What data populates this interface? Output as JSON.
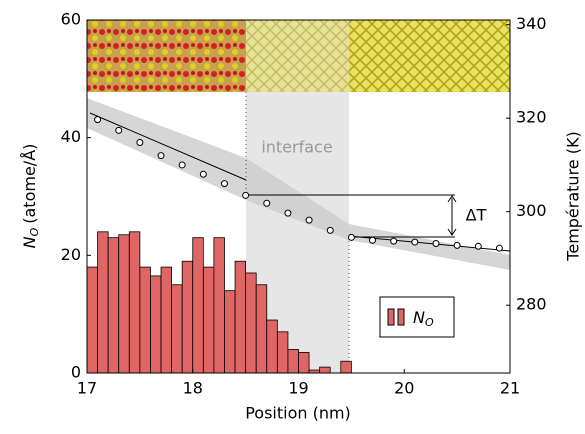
{
  "chart_data": {
    "type": "bar",
    "ylabel": {
      "symbol": "N",
      "subscript": "O",
      "unit": "(atome/Å)"
    },
    "y2label": "Température (K)",
    "xlabel": "Position (nm)",
    "annotations": [
      "interface",
      "ΔT"
    ],
    "x": [
      17.05,
      17.15,
      17.25,
      17.35,
      17.45,
      17.55,
      17.65,
      17.75,
      17.85,
      17.95,
      18.05,
      18.15,
      18.25,
      18.35,
      18.45,
      18.55,
      18.65,
      18.75,
      18.85,
      18.95,
      19.05,
      19.15,
      19.25,
      19.35,
      19.45
    ],
    "bar_width": 0.1,
    "series": [
      {
        "name": "N",
        "name_subscript": "O",
        "color": "#e06666",
        "values": [
          18,
          24,
          23,
          23.5,
          24,
          18,
          16.5,
          18,
          15,
          19,
          23,
          18,
          23,
          14,
          19,
          17,
          15,
          9,
          7,
          4,
          3.5,
          0.5,
          1,
          0,
          2
        ]
      },
      {
        "type": "scatter",
        "axis": "y2",
        "color": "#000",
        "x": [
          17.1,
          17.3,
          17.5,
          17.7,
          17.9,
          18.1,
          18.3,
          18.5,
          18.7,
          18.9,
          19.1,
          19.3,
          19.5,
          19.7,
          19.9,
          20.1,
          20.3,
          20.5,
          20.7,
          20.9
        ],
        "values": [
          319.7,
          317.4,
          314.8,
          312,
          310,
          308,
          306,
          303.5,
          301.8,
          299.7,
          298.2,
          296,
          294.5,
          293.9,
          293.7,
          293.5,
          293.2,
          292.8,
          292.6,
          292.2
        ]
      }
    ],
    "xlim": [
      17,
      21
    ],
    "xticks": [
      17,
      18,
      19,
      20,
      21
    ],
    "ylim": [
      0,
      60
    ],
    "yticks": [
      0,
      20,
      40,
      60
    ],
    "y2lim": [
      265.5,
      341
    ],
    "y2ticks": [
      280,
      300,
      320,
      340
    ]
  }
}
